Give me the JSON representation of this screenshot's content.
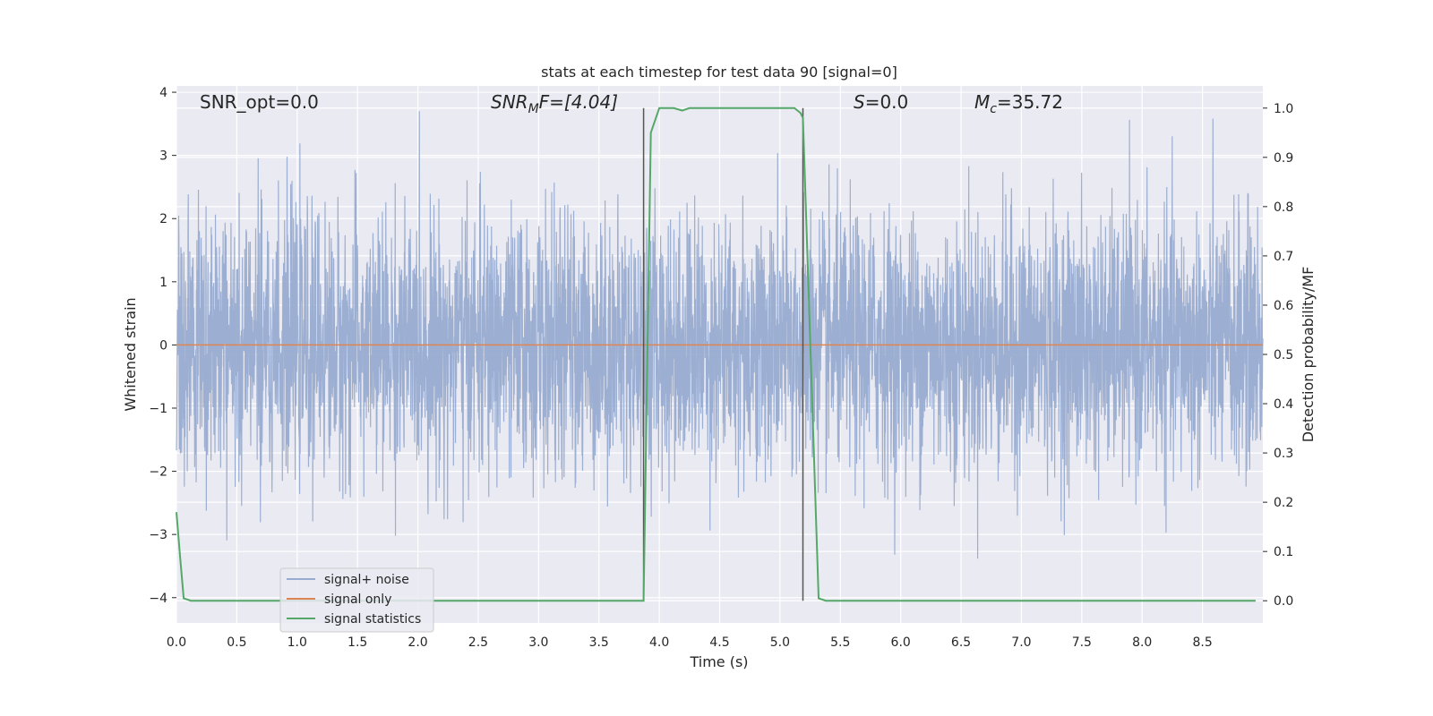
{
  "chart_data": {
    "type": "line",
    "title": "stats at each timestep for test data 90 [signal=0]",
    "xlabel": "Time (s)",
    "ylabel_left": "Whitened strain",
    "ylabel_right": "Detection probability/MF",
    "xlim": [
      0.0,
      9.0
    ],
    "ylim_left": [
      -4.4,
      4.1
    ],
    "ylim_right": [
      -0.045,
      1.045
    ],
    "x_ticks": [
      0.0,
      0.5,
      1.0,
      1.5,
      2.0,
      2.5,
      3.0,
      3.5,
      4.0,
      4.5,
      5.0,
      5.5,
      6.0,
      6.5,
      7.0,
      7.5,
      8.0,
      8.5
    ],
    "x_tick_labels": [
      "0.0",
      "0.5",
      "1.0",
      "1.5",
      "2.0",
      "2.5",
      "3.0",
      "3.5",
      "4.0",
      "4.5",
      "5.0",
      "5.5",
      "6.0",
      "6.5",
      "7.0",
      "7.5",
      "8.0",
      "8.5"
    ],
    "y_left_ticks": [
      -4,
      -3,
      -2,
      -1,
      0,
      1,
      2,
      3,
      4
    ],
    "y_left_tick_labels": [
      "−4",
      "−3",
      "−2",
      "−1",
      "0",
      "1",
      "2",
      "3",
      "4"
    ],
    "y_right_ticks": [
      0.0,
      0.1,
      0.2,
      0.3,
      0.4,
      0.5,
      0.6,
      0.7,
      0.8,
      0.9,
      1.0
    ],
    "y_right_tick_labels": [
      "0.0",
      "0.1",
      "0.2",
      "0.3",
      "0.4",
      "0.5",
      "0.6",
      "0.7",
      "0.8",
      "0.9",
      "1.0"
    ],
    "grid": true,
    "legend_position": "lower-left",
    "annotations": {
      "snr_opt": "SNR_opt=0.0",
      "snr_mf_main": "SNR",
      "snr_mf_sub": "M",
      "snr_mf_rest": "F=[4.04]",
      "s_main": "S",
      "s_rest": "=0.0",
      "mc_main": "M",
      "mc_sub": "c",
      "mc_rest": "=35.72"
    },
    "vlines": [
      3.87,
      5.19
    ],
    "series": [
      {
        "name": "signal+ noise",
        "axis": "left",
        "color": "#98acd0",
        "style": "dense noise band; amplitude mostly within ±2, spikes to about ±3.5"
      },
      {
        "name": "signal only",
        "axis": "left",
        "color": "#dd8452",
        "x": [
          0.0,
          9.0
        ],
        "values": [
          0.0,
          0.0
        ]
      },
      {
        "name": "signal statistics",
        "axis": "right",
        "color": "#55a868",
        "x": [
          0.0,
          0.03,
          0.06,
          0.12,
          3.87,
          3.93,
          4.0,
          4.12,
          4.19,
          4.25,
          5.12,
          5.17,
          5.19,
          5.32,
          5.38,
          8.94
        ],
        "values": [
          0.18,
          0.09,
          0.005,
          0.0,
          0.0,
          0.95,
          1.0,
          1.0,
          0.995,
          1.0,
          1.0,
          0.99,
          0.98,
          0.005,
          0.0,
          0.0
        ]
      }
    ]
  },
  "colors": {
    "plot_background": "#eaeaf2",
    "grid": "#ffffff",
    "vline": "#555555"
  }
}
